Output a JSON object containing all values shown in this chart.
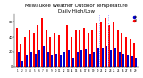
{
  "title": "Milwaukee Weather Outdoor Temperature\nDaily High/Low",
  "days": [
    1,
    2,
    3,
    4,
    5,
    6,
    7,
    8,
    9,
    10,
    11,
    12,
    13,
    14,
    15,
    16,
    17,
    18,
    19,
    20,
    21,
    22,
    23,
    24,
    25,
    26,
    27,
    28,
    29
  ],
  "highs": [
    52,
    30,
    40,
    50,
    45,
    55,
    65,
    48,
    40,
    45,
    42,
    50,
    55,
    40,
    48,
    50,
    52,
    45,
    48,
    58,
    60,
    65,
    55,
    60,
    50,
    45,
    40,
    38,
    32
  ],
  "lows": [
    20,
    8,
    16,
    20,
    18,
    22,
    28,
    20,
    16,
    18,
    16,
    20,
    22,
    12,
    20,
    22,
    24,
    18,
    20,
    26,
    26,
    28,
    22,
    26,
    20,
    18,
    16,
    14,
    12
  ],
  "high_color": "#ff0000",
  "low_color": "#0000cc",
  "dashed_line1": 20.5,
  "dashed_line2": 22.5,
  "ylim": [
    0,
    70
  ],
  "yticks": [
    0,
    20,
    40,
    60
  ],
  "background_color": "#ffffff",
  "title_fontsize": 4.0,
  "bar_width": 0.42,
  "legend_dot_blue": "#0000cc",
  "legend_dot_red": "#ff0000"
}
